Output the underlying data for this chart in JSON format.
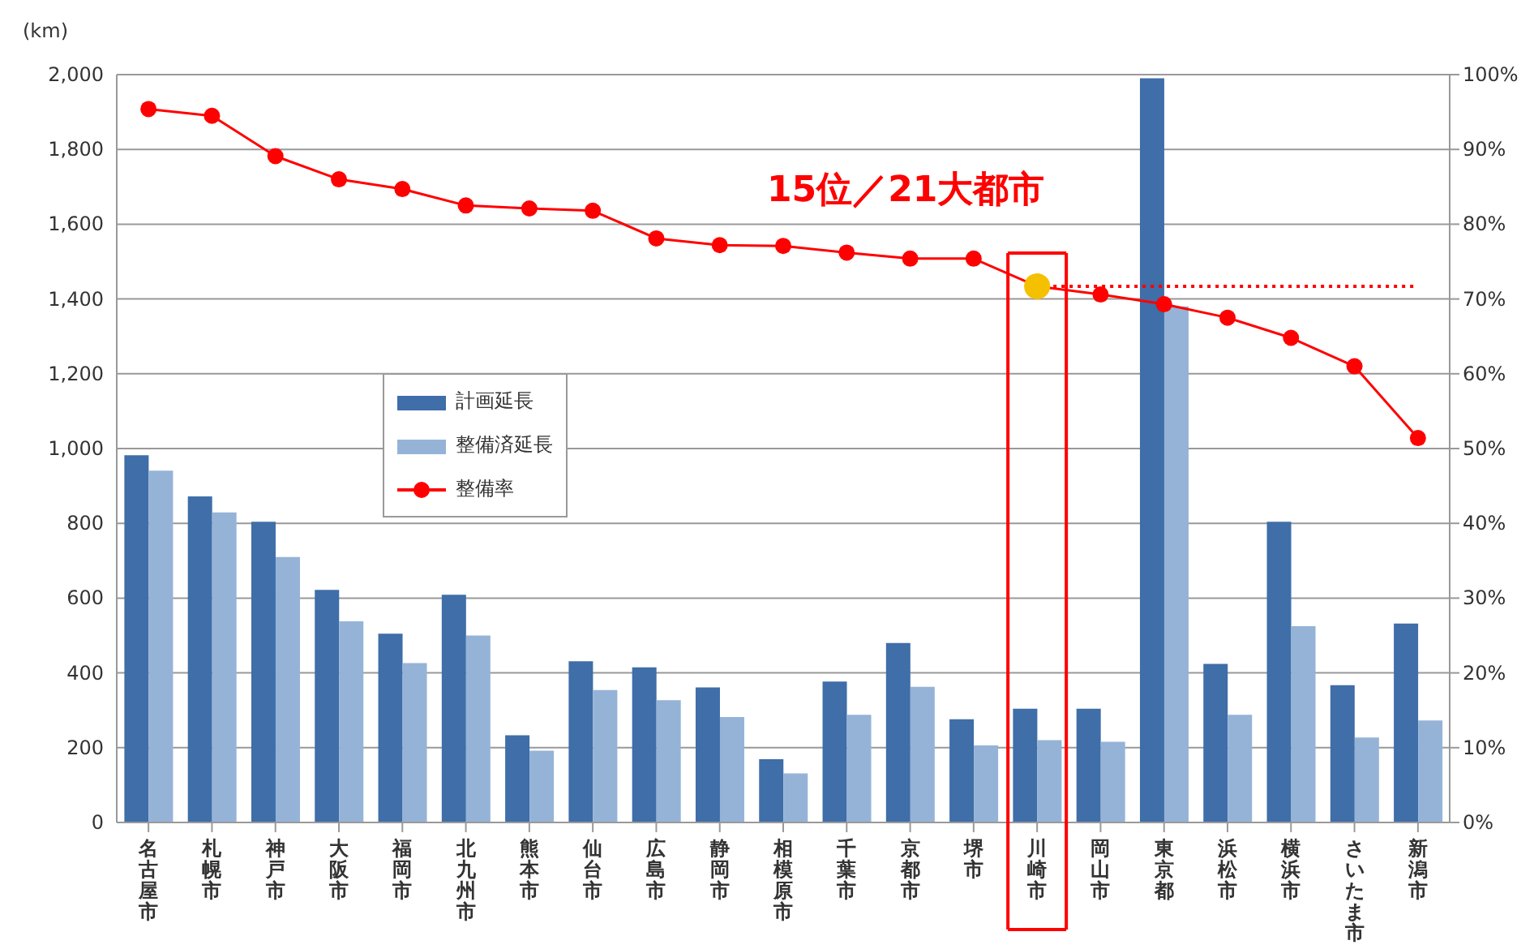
{
  "chart_data": {
    "type": "bar",
    "ylabel": "(km)",
    "categories": [
      "名古屋市",
      "札幌市",
      "神戸市",
      "大阪市",
      "福岡市",
      "北九州市",
      "熊本市",
      "仙台市",
      "広島市",
      "静岡市",
      "相模原市",
      "千葉市",
      "京都市",
      "堺市",
      "川崎市",
      "岡山市",
      "東京都",
      "浜松市",
      "横浜市",
      "さいたま市",
      "新潟市"
    ],
    "series": [
      {
        "name": "計画延長",
        "color": "#3f6ea8",
        "values": [
          982,
          872,
          804,
          622,
          505,
          609,
          233,
          431,
          415,
          361,
          169,
          377,
          480,
          276,
          304,
          304,
          1990,
          424,
          804,
          367,
          532
        ]
      },
      {
        "name": "整備済延長",
        "color": "#95b3d7",
        "values": [
          941,
          829,
          710,
          538,
          426,
          500,
          192,
          354,
          327,
          282,
          131,
          288,
          363,
          206,
          220,
          216,
          1380,
          288,
          525,
          227,
          273
        ]
      },
      {
        "name": "整備率",
        "type": "line",
        "axis": "y2",
        "color": "#ff0000",
        "colors": [
          "#ff0000",
          "#ff0000",
          "#ff0000",
          "#ff0000",
          "#ff0000",
          "#ff0000",
          "#ff0000",
          "#ff0000",
          "#ff0000",
          "#ff0000",
          "#ff0000",
          "#ff0000",
          "#ff0000",
          "#ff0000",
          "#f5c000",
          "#ff0000",
          "#ff0000",
          "#ff0000",
          "#ff0000",
          "#ff0000",
          "#ff0000"
        ],
        "values": [
          95.4,
          94.5,
          89.1,
          86.0,
          84.7,
          82.5,
          82.1,
          81.8,
          78.1,
          77.2,
          77.1,
          76.2,
          75.4,
          75.4,
          71.7,
          70.6,
          69.3,
          67.5,
          64.8,
          61.0,
          51.4
        ]
      }
    ],
    "ylim": [
      0,
      2000
    ],
    "yticks": [
      {
        "value": 0,
        "label": "0"
      },
      {
        "value": 200,
        "label": "200"
      },
      {
        "value": 400,
        "label": "400"
      },
      {
        "value": 600,
        "label": "600"
      },
      {
        "value": 800,
        "label": "800"
      },
      {
        "value": 1000,
        "label": "1,000"
      },
      {
        "value": 1200,
        "label": "1,200"
      },
      {
        "value": 1400,
        "label": "1,400"
      },
      {
        "value": 1600,
        "label": "1,600"
      },
      {
        "value": 1800,
        "label": "1,800"
      },
      {
        "value": 2000,
        "label": "2,000"
      }
    ],
    "y2lim": [
      0,
      100
    ],
    "y2ticks": [
      {
        "value": 0,
        "label": "0%"
      },
      {
        "value": 10,
        "label": "10%"
      },
      {
        "value": 20,
        "label": "20%"
      },
      {
        "value": 30,
        "label": "30%"
      },
      {
        "value": 40,
        "label": "40%"
      },
      {
        "value": 50,
        "label": "50%"
      },
      {
        "value": 60,
        "label": "60%"
      },
      {
        "value": 70,
        "label": "70%"
      },
      {
        "value": 80,
        "label": "80%"
      },
      {
        "value": 90,
        "label": "90%"
      },
      {
        "value": 100,
        "label": "100%"
      }
    ],
    "ref_lines": [
      {
        "axis": "y2",
        "value": 71.7,
        "color": "#ff0000",
        "line_style": "dotted"
      }
    ],
    "annotations": [
      "15位／21大都市"
    ],
    "grid": "y",
    "legend": "left",
    "marker": "circle"
  }
}
